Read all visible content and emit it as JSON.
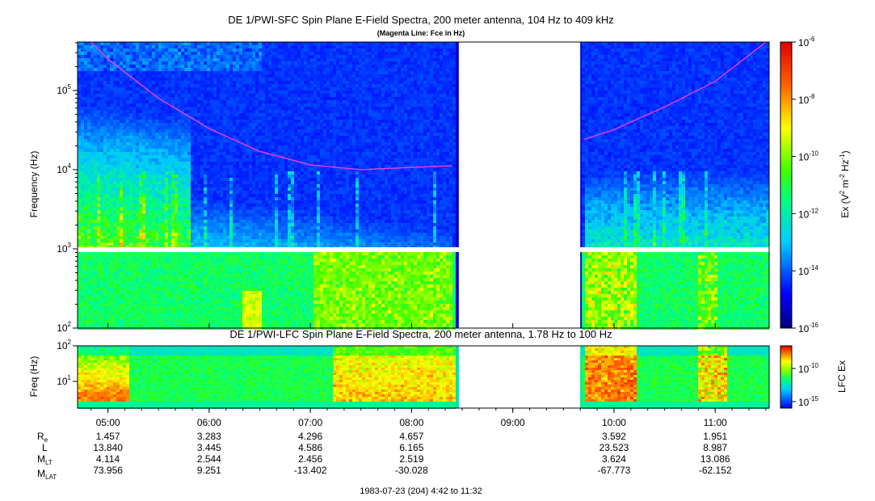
{
  "chart_data": [
    {
      "type": "heatmap",
      "title": "DE 1/PWI-SFC  Spin Plane E-Field Spectra, 200 meter antenna, 104 Hz to 409 kHz",
      "subtitle": "(Magenta Line: Fce in Hz)",
      "ylabel": "Frequency (Hz)",
      "yscale": "log",
      "ylim": [
        100,
        409000
      ],
      "yticks": [
        {
          "base": "10",
          "exp": "2"
        },
        {
          "base": "10",
          "exp": "3"
        },
        {
          "base": "10",
          "exp": "4"
        },
        {
          "base": "10",
          "exp": "5"
        }
      ],
      "colorbar": {
        "label_main": "Ex (V",
        "label_sup1": "2",
        "label_mid": " m",
        "label_sup2": "-2",
        "label_hz": " Hz",
        "label_sup3": "-1",
        "label_end": ")",
        "ticks": [
          {
            "base": "10",
            "exp": "-6"
          },
          {
            "base": "10",
            "exp": "-8"
          },
          {
            "base": "10",
            "exp": "-10"
          },
          {
            "base": "10",
            "exp": "-12"
          },
          {
            "base": "10",
            "exp": "-14"
          },
          {
            "base": "10",
            "exp": "-16"
          }
        ]
      },
      "data_gap": [
        "08:28",
        "09:40"
      ],
      "line_series": {
        "name": "Fce",
        "color": "#e040e0",
        "x_hours": [
          4.83,
          5.0,
          5.5,
          6.0,
          6.5,
          7.0,
          7.5,
          7.8,
          8.0,
          8.4,
          9.7,
          10.0,
          10.5,
          11.0,
          11.5
        ],
        "y_hz": [
          409000,
          250000,
          80000,
          33000,
          17000,
          11500,
          10000,
          10400,
          10700,
          11200,
          24000,
          32000,
          62000,
          130000,
          409000
        ]
      }
    },
    {
      "type": "heatmap",
      "title": "DE 1/PWI-LFC  Spin Plane E-Field Spectra, 200 meter antenna, 1.78 Hz to 100 Hz",
      "ylabel": "Freq (Hz)",
      "yscale": "log",
      "ylim": [
        1.78,
        100
      ],
      "yticks": [
        {
          "base": "10",
          "exp": "1"
        },
        {
          "base": "10",
          "exp": "2"
        }
      ],
      "colorbar": {
        "label": "LFC Ex",
        "ticks": [
          {
            "base": "10",
            "exp": "-10"
          },
          {
            "base": "10",
            "exp": "-15"
          }
        ]
      },
      "data_gap": [
        "08:28",
        "09:40"
      ]
    }
  ],
  "time_axis": {
    "ticks": [
      "05:00",
      "06:00",
      "07:00",
      "08:00",
      "09:00",
      "10:00",
      "11:00"
    ],
    "tick_hours": [
      5,
      6,
      7,
      8,
      9,
      10,
      11
    ],
    "range_hours": [
      4.7,
      11.533
    ]
  },
  "ephemeris": {
    "rows": [
      {
        "label": "R",
        "sub": "e",
        "values": [
          "1.457",
          "3.283",
          "4.296",
          "4.657",
          "",
          "3.592",
          "1.951"
        ]
      },
      {
        "label": "L",
        "sub": "",
        "values": [
          "13.840",
          "3.445",
          "4.586",
          "6.165",
          "",
          "23.523",
          "8.987"
        ]
      },
      {
        "label": "M",
        "sub": "LT",
        "values": [
          "4.114",
          "2.544",
          "2.456",
          "2.519",
          "",
          "3.624",
          "13.086"
        ]
      },
      {
        "label": "M",
        "sub": "LAT",
        "values": [
          "73.956",
          "9.251",
          "-13.402",
          "-30.028",
          "",
          "-67.773",
          "-62.152"
        ]
      }
    ]
  },
  "footer": "1983-07-23 (204) 4:42 to 11:32"
}
